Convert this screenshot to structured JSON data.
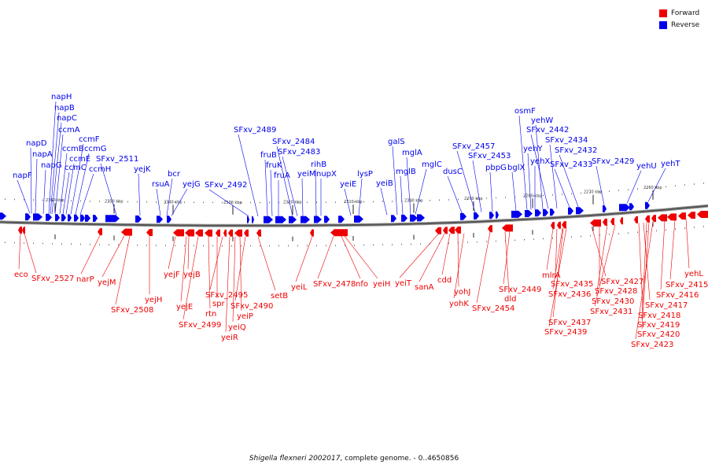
{
  "legend": {
    "forward_label": "Forward",
    "reverse_label": "Reverse",
    "forward_color": "#ee0000",
    "reverse_color": "#0000ee"
  },
  "caption": {
    "organism": "Shigella flexneri 2002017",
    "rest": ", complete genome. - 0..4650856"
  },
  "ticks": [
    "2360 kbp",
    "2350 kbp",
    "2340 kbp",
    "2330 kbp",
    "2320 kbp",
    "2310 kbp",
    "2300 kbp",
    "2290 kbp",
    "2280 kbp",
    "2270 kbp",
    "2260 kbp"
  ],
  "reverse_genes": [
    "napF",
    "napD",
    "napA",
    "napG",
    "napH",
    "napB",
    "napC",
    "ccmA",
    "ccmB",
    "ccmC",
    "ccmE",
    "ccmF",
    "ccmG",
    "ccmH",
    "SFxv_2511",
    "yejK",
    "rsuA",
    "bcr",
    "yejG",
    "SFxv_2492",
    "SFxv_2489",
    "fruB",
    "fruK",
    "fruA",
    "SFxv_2484",
    "SFxv_2483",
    "yeiM",
    "rihB",
    "nupX",
    "yeiE",
    "lysP",
    "yeiB",
    "galS",
    "mglB",
    "mglA",
    "mglC",
    "dusC",
    "SFxv_2457",
    "SFxv_2453",
    "pbpG",
    "bglX",
    "osmF",
    "yehY",
    "yehX",
    "yehW",
    "SFxv_2442",
    "SFxv_2434",
    "SFxv_2433",
    "SFxv_2432",
    "SFxv_2429",
    "yehU",
    "yehT"
  ],
  "forward_genes": [
    "eco",
    "SFxv_2527",
    "narP",
    "yejM",
    "SFxv_2508",
    "yejH",
    "yejF",
    "yejE",
    "yejB",
    "SFxv_2499",
    "rtn",
    "spr",
    "SFxv_2495",
    "yeiR",
    "yeiQ",
    "yeiP",
    "SFxv_2490",
    "setB",
    "yeiL",
    "SFxv_2478",
    "nfo",
    "yeiH",
    "yeiT",
    "sanA",
    "cdd",
    "yohJ",
    "yohK",
    "SFxv_2454",
    "dld",
    "SFxv_2449",
    "mlrA",
    "SFxv_2435",
    "SFxv_2436",
    "SFxv_2437",
    "SFxv_2439",
    "SFxv_2427",
    "SFxv_2428",
    "SFxv_2430",
    "SFxv_2431",
    "SFxv_2418",
    "SFxv_2417",
    "SFxv_2419",
    "SFxv_2420",
    "SFxv_2423",
    "SFxv_2416",
    "SFxv_2415",
    "yehL"
  ]
}
